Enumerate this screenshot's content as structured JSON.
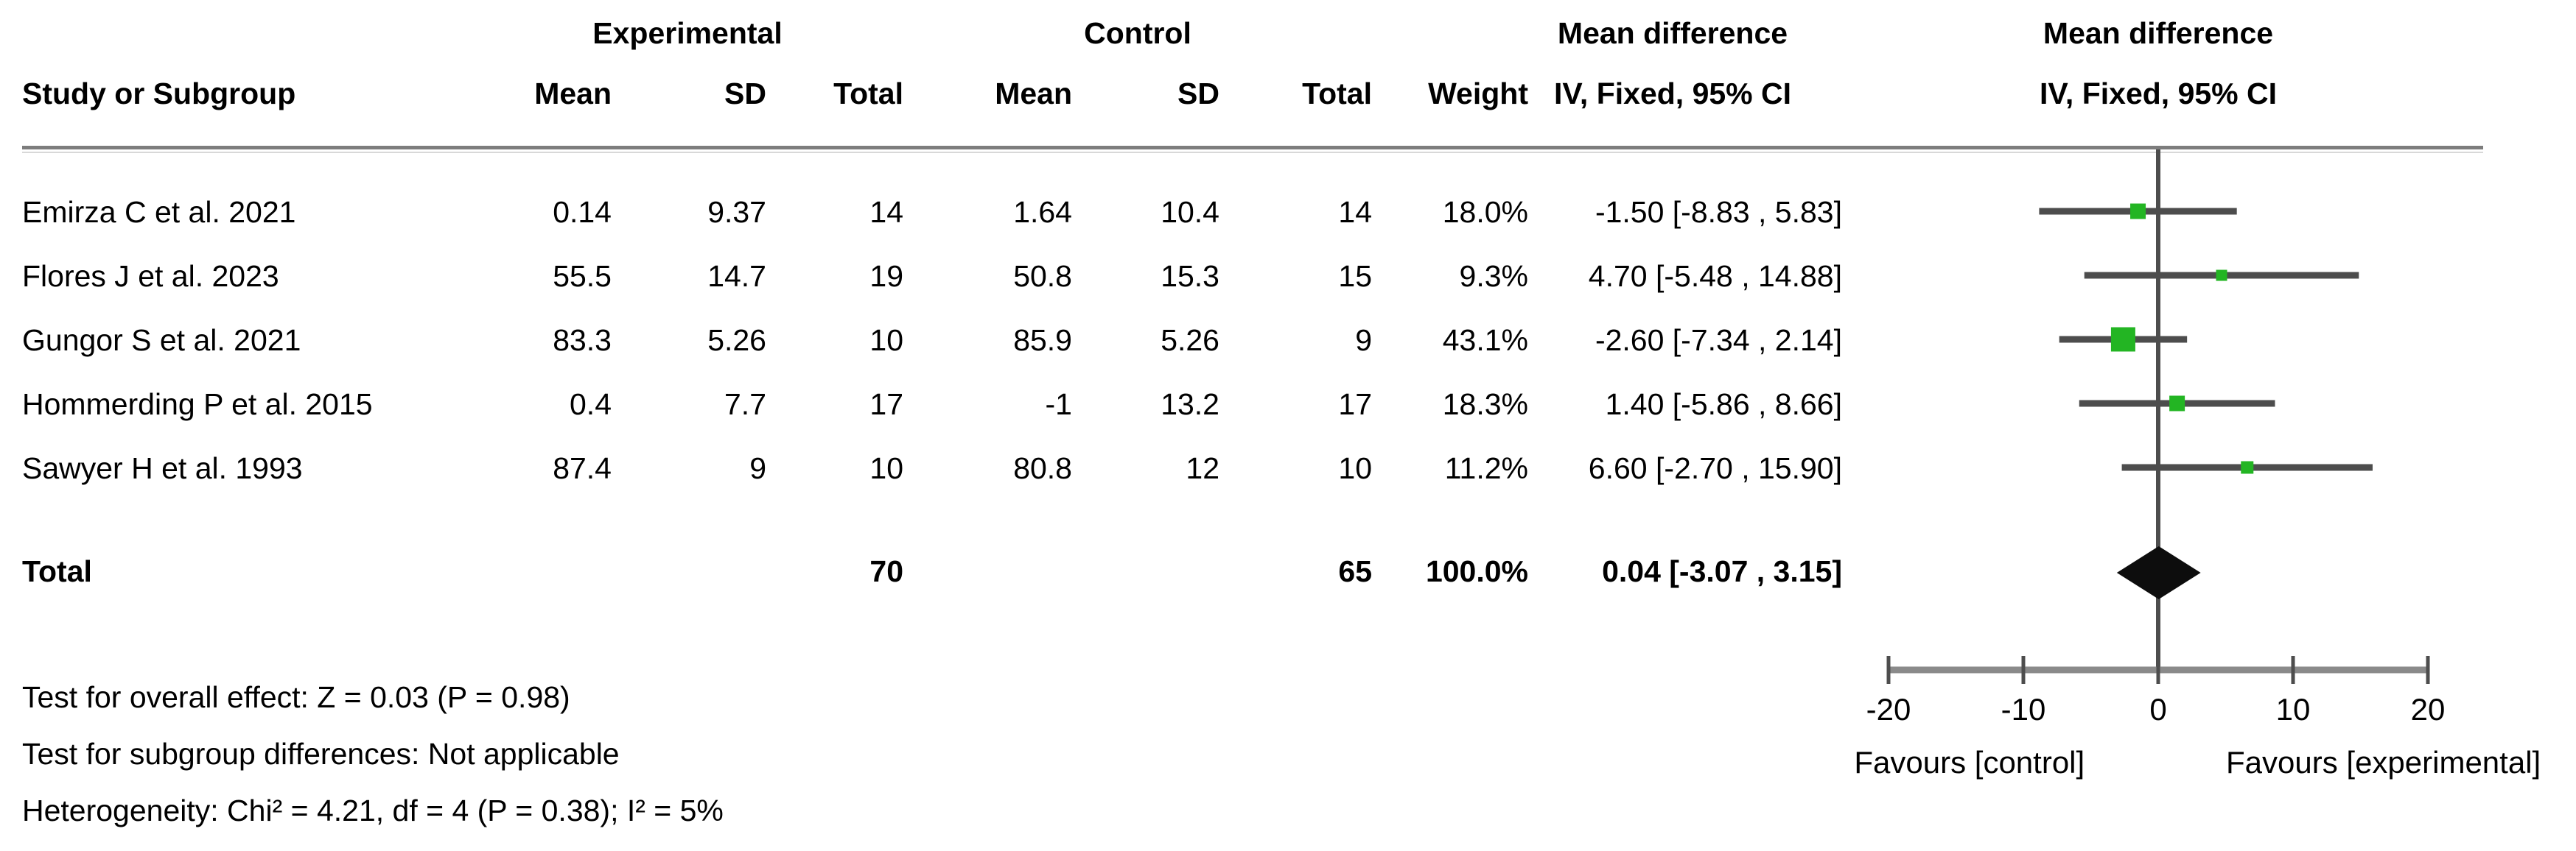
{
  "table": {
    "group_headers": {
      "experimental": "Experimental",
      "control": "Control",
      "md_text_col": "Mean difference",
      "md_plot_col": "Mean difference"
    },
    "col_headers": {
      "study": "Study or Subgroup",
      "e_mean": "Mean",
      "e_sd": "SD",
      "e_total": "Total",
      "c_mean": "Mean",
      "c_sd": "SD",
      "c_total": "Total",
      "weight": "Weight",
      "ci_text": "IV, Fixed, 95% CI",
      "ci_plot": "IV, Fixed, 95% CI"
    },
    "rows": [
      {
        "study": "Emirza C et al. 2021",
        "e_mean": "0.14",
        "e_sd": "9.37",
        "e_total": "14",
        "c_mean": "1.64",
        "c_sd": "10.4",
        "c_total": "14",
        "weight": "18.0%",
        "md": "-1.50 [-8.83 , 5.83]"
      },
      {
        "study": "Flores J et al. 2023",
        "e_mean": "55.5",
        "e_sd": "14.7",
        "e_total": "19",
        "c_mean": "50.8",
        "c_sd": "15.3",
        "c_total": "15",
        "weight": "9.3%",
        "md": "4.70 [-5.48 , 14.88]"
      },
      {
        "study": "Gungor S et al. 2021",
        "e_mean": "83.3",
        "e_sd": "5.26",
        "e_total": "10",
        "c_mean": "85.9",
        "c_sd": "5.26",
        "c_total": "9",
        "weight": "43.1%",
        "md": "-2.60 [-7.34 , 2.14]"
      },
      {
        "study": "Hommerding P et al. 2015",
        "e_mean": "0.4",
        "e_sd": "7.7",
        "e_total": "17",
        "c_mean": "-1",
        "c_sd": "13.2",
        "c_total": "17",
        "weight": "18.3%",
        "md": "1.40 [-5.86 , 8.66]"
      },
      {
        "study": "Sawyer H et al. 1993",
        "e_mean": "87.4",
        "e_sd": "9",
        "e_total": "10",
        "c_mean": "80.8",
        "c_sd": "12",
        "c_total": "10",
        "weight": "11.2%",
        "md": "6.60 [-2.70 , 15.90]"
      }
    ],
    "total_row": {
      "label": "Total",
      "e_total": "70",
      "c_total": "65",
      "weight": "100.0%",
      "md": "0.04 [-3.07 , 3.15]"
    }
  },
  "footer": {
    "line1": "Test for overall effect: Z = 0.03 (P = 0.98)",
    "line2": "Test for subgroup differences: Not applicable",
    "line3": "Heterogeneity: Chi² = 4.21, df = 4 (P = 0.38); I² = 5%"
  },
  "chart_data": {
    "type": "scatter",
    "subtype": "forest-plot",
    "effect_measure": "Mean difference, IV, Fixed, 95% CI",
    "studies": [
      {
        "name": "Emirza C et al. 2021",
        "md": -1.5,
        "ci_low": -8.83,
        "ci_high": 5.83,
        "weight_pct": 18.0
      },
      {
        "name": "Flores J et al. 2023",
        "md": 4.7,
        "ci_low": -5.48,
        "ci_high": 14.88,
        "weight_pct": 9.3
      },
      {
        "name": "Gungor S et al. 2021",
        "md": -2.6,
        "ci_low": -7.34,
        "ci_high": 2.14,
        "weight_pct": 43.1
      },
      {
        "name": "Hommerding P et al. 2015",
        "md": 1.4,
        "ci_low": -5.86,
        "ci_high": 8.66,
        "weight_pct": 18.3
      },
      {
        "name": "Sawyer H et al. 1993",
        "md": 6.6,
        "ci_low": -2.7,
        "ci_high": 15.9,
        "weight_pct": 11.2
      }
    ],
    "total": {
      "md": 0.04,
      "ci_low": -3.07,
      "ci_high": 3.15,
      "weight_pct": 100.0
    },
    "xlim": [
      -20,
      20
    ],
    "ticks": [
      "-20",
      "-10",
      "0",
      "10",
      "20"
    ],
    "tick_values": [
      -20,
      -10,
      0,
      10,
      20
    ],
    "xlabel_left": "Favours [control]",
    "xlabel_right": "Favours [experimental]",
    "grid": false,
    "legend": "none"
  },
  "colors": {
    "marker_green": "#23b523",
    "ci_line": "#4d4d4d",
    "zero_line": "#4d4d4d",
    "axis_line": "#8a8a8a",
    "tick_mark": "#4d4d4d",
    "diamond": "#0d0d0d",
    "header_rule": "#7d7d7d",
    "text": "#000000"
  }
}
